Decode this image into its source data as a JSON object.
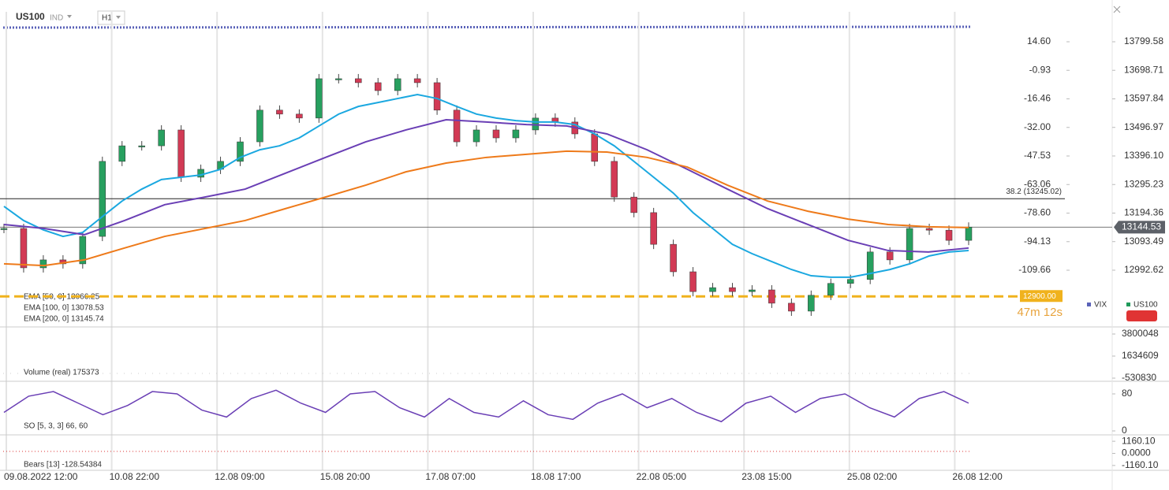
{
  "header": {
    "symbol": "US100",
    "market": "IND",
    "timeframe": "H1"
  },
  "price": {
    "ylim": [
      12806.1,
      13896.97
    ],
    "yticks": [
      13799.58,
      13698.71,
      13597.84,
      13496.97,
      {
        "value": 13396.1,
        "label": "13396.10"
      },
      13295.23,
      13194.36,
      13093.49,
      12992.62
    ],
    "y2lim": [
      -138.37,
      29.6
    ],
    "y2ticks": [
      {
        "value": 14.6,
        "label": "14.60"
      },
      -0.93,
      -16.46,
      {
        "value": -32,
        "label": "-32.00"
      },
      -47.53,
      -63.06,
      {
        "value": -78.6,
        "label": "-78.60"
      },
      -94.13,
      -109.66
    ],
    "close": [
      13140,
      13001,
      13029,
      13015,
      13112,
      13377,
      13432,
      13432,
      13488,
      13321,
      13349,
      13377,
      13446,
      13558,
      13544,
      13530,
      13669,
      13669,
      13655,
      13627,
      13669,
      13655,
      13558,
      13446,
      13488,
      13460,
      13488,
      13530,
      13516,
      13474,
      13377,
      13251,
      13196,
      13084,
      12987,
      12917,
      12931,
      12917,
      12923,
      12876,
      12848,
      12904,
      12946,
      12960,
      13057,
      13029,
      13140,
      13134,
      13098,
      13145
    ],
    "ema": [
      {
        "name": "EMA [50, 0] 13066.25",
        "color": "#1ba8e0",
        "values": [
          13218,
          13168,
          13135,
          13112,
          13126,
          13182,
          13237,
          13279,
          13313,
          13321,
          13329,
          13349,
          13391,
          13418,
          13432,
          13460,
          13502,
          13544,
          13571,
          13585,
          13599,
          13613,
          13599,
          13571,
          13544,
          13530,
          13521,
          13516,
          13516,
          13507,
          13474,
          13432,
          13377,
          13321,
          13265,
          13196,
          13140,
          13084,
          13051,
          13023,
          12995,
          12973,
          12968,
          12968,
          12981,
          12995,
          13015,
          13043,
          13057,
          13062
        ]
      },
      {
        "name": "EMA [100, 0] 13078.53",
        "color": "#6a3fb5",
        "values": [
          13154,
          13140,
          13118,
          13168,
          13224,
          13251,
          13279,
          13335,
          13391,
          13446,
          13488,
          13524,
          13516,
          13507,
          13502,
          13474,
          13418,
          13349,
          13279,
          13210,
          13154,
          13098,
          13062,
          13057,
          13071
        ]
      },
      {
        "name": "EMA [200, 0] 13145.74",
        "color": "#ee7a1a",
        "values": [
          13015,
          13009,
          13029,
          13071,
          13112,
          13140,
          13168,
          13210,
          13251,
          13293,
          13340,
          13371,
          13391,
          13402,
          13413,
          13410,
          13391,
          13357,
          13293,
          13237,
          13201,
          13173,
          13154,
          13146,
          13143
        ]
      }
    ],
    "fib": {
      "value": 13245.02,
      "label": "38.2 (13245.02)"
    },
    "current": 13144.53,
    "alert": {
      "value": 12900,
      "label": "12900.00"
    },
    "countdown": "47m 12s",
    "legend": [
      "VIX",
      "US100"
    ]
  },
  "volume": {
    "label": "Volume (real)  175373",
    "ylim": [
      -685504,
      4264070
    ],
    "yticks": [
      3800048,
      1634609,
      -530830
    ]
  },
  "stochastic": {
    "label": "SO [5, 3, 3] 66, 60",
    "ylim": [
      -8.5,
      102.1
    ],
    "yticks": [
      80,
      0
    ],
    "color": "#6a3fb5",
    "values": [
      40,
      75,
      85,
      60,
      35,
      55,
      85,
      80,
      45,
      30,
      70,
      88,
      60,
      40,
      80,
      85,
      50,
      30,
      70,
      40,
      30,
      65,
      35,
      25,
      60,
      80,
      50,
      70,
      40,
      20,
      60,
      75,
      40,
      70,
      80,
      50,
      30,
      70,
      85,
      60
    ]
  },
  "bears": {
    "label": "Bears [13] -128.54384",
    "ylim": [
      -1624,
      1547
    ],
    "yticks": [
      {
        "value": 1160.1,
        "label": "1160.10"
      },
      {
        "value": 0,
        "label": "0.0000"
      },
      {
        "value": -1160.1,
        "label": "-1160.10"
      }
    ]
  },
  "xlabels": [
    "09.08.2022 12:00",
    "10.08 22:00",
    "12.08 09:00",
    "15.08 20:00",
    "17.08 07:00",
    "18.08 17:00",
    "22.08 05:00",
    "23.08 15:00",
    "25.08 02:00",
    "26.08 12:00"
  ]
}
